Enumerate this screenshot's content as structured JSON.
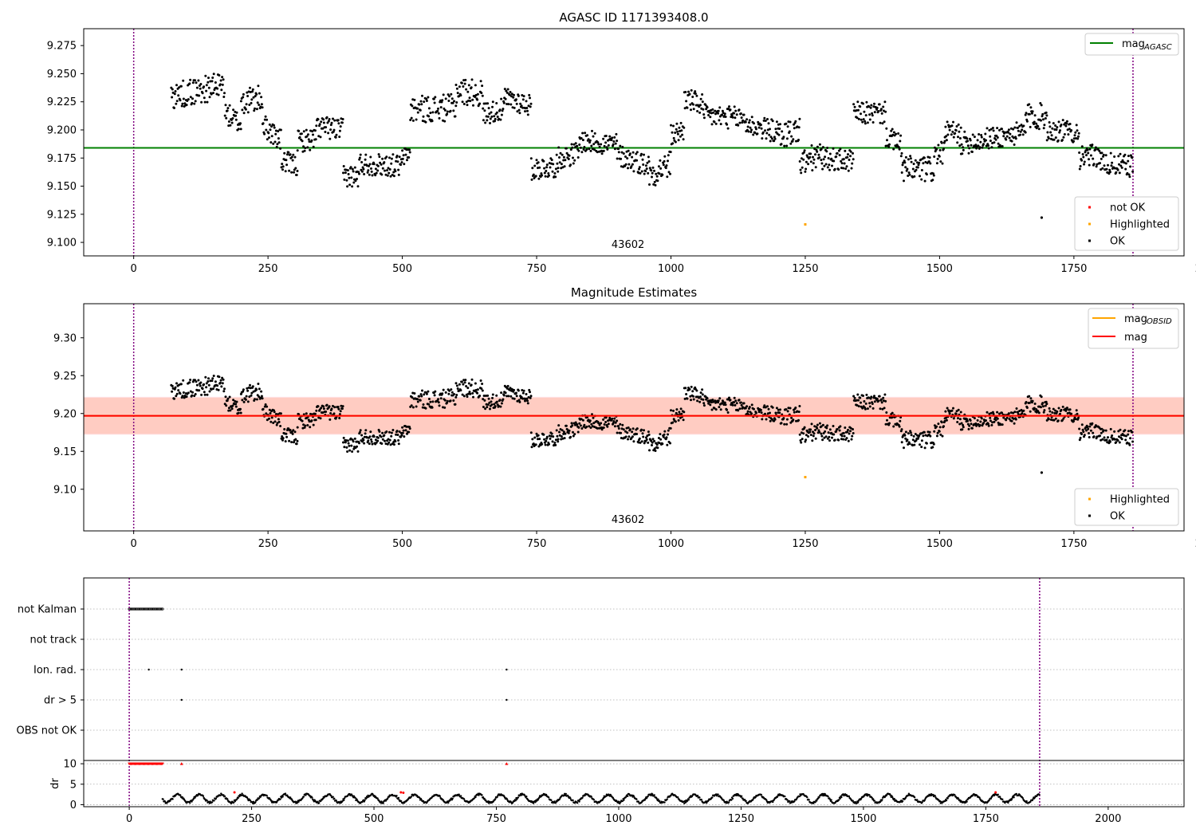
{
  "figure_title": "AGASC ID 1171393408.0",
  "colors": {
    "agasc_line": "#008000",
    "obsid_line": "#ffa500",
    "mag_line": "#ff0000",
    "band_outer": "#ffc0cb",
    "band_inner": "#ffa07a",
    "ok_points": "#000000",
    "highlighted_points": "#ffa500",
    "not_ok_points": "#ff0000",
    "vline": "#800080"
  },
  "chart_data": [
    {
      "type": "scatter",
      "title": "",
      "annotation": "43602",
      "x_ticks": [
        "0",
        "250",
        "500",
        "750",
        "1000",
        "1250",
        "1500",
        "1750",
        "2000"
      ],
      "y_ticks": [
        "9.100",
        "9.125",
        "9.150",
        "9.175",
        "9.200",
        "9.225",
        "9.250",
        "9.275"
      ],
      "xlim": [
        -93,
        1955
      ],
      "ylim": [
        9.088,
        9.29
      ],
      "vlines_x": [
        0,
        1860
      ],
      "hline": {
        "y": 9.184,
        "x": [
          -93,
          1955
        ]
      },
      "highlighted_points": [
        {
          "x": 1250,
          "y": 9.116
        }
      ],
      "legend_top": {
        "entries": [
          {
            "label": "mag",
            "sub": "AGASC"
          }
        ]
      },
      "legend_bottom": {
        "entries": [
          "not OK",
          "Highlighted",
          "OK"
        ]
      },
      "ok_series_segments": [
        {
          "x0": 70,
          "x1": 170,
          "c0": 9.23,
          "c1": 9.24,
          "amp": 0.012
        },
        {
          "x0": 170,
          "x1": 200,
          "c0": 9.215,
          "c1": 9.205,
          "amp": 0.01
        },
        {
          "x0": 200,
          "x1": 240,
          "c0": 9.225,
          "c1": 9.228,
          "amp": 0.012
        },
        {
          "x0": 240,
          "x1": 275,
          "c0": 9.205,
          "c1": 9.19,
          "amp": 0.01
        },
        {
          "x0": 275,
          "x1": 305,
          "c0": 9.172,
          "c1": 9.168,
          "amp": 0.01
        },
        {
          "x0": 305,
          "x1": 340,
          "c0": 9.19,
          "c1": 9.192,
          "amp": 0.01
        },
        {
          "x0": 340,
          "x1": 390,
          "c0": 9.203,
          "c1": 9.2,
          "amp": 0.01
        },
        {
          "x0": 390,
          "x1": 420,
          "c0": 9.16,
          "c1": 9.158,
          "amp": 0.01
        },
        {
          "x0": 420,
          "x1": 500,
          "c0": 9.17,
          "c1": 9.168,
          "amp": 0.01
        },
        {
          "x0": 500,
          "x1": 515,
          "c0": 9.175,
          "c1": 9.18,
          "amp": 0.008
        },
        {
          "x0": 515,
          "x1": 600,
          "c0": 9.218,
          "c1": 9.22,
          "amp": 0.012
        },
        {
          "x0": 600,
          "x1": 650,
          "c0": 9.235,
          "c1": 9.232,
          "amp": 0.012
        },
        {
          "x0": 650,
          "x1": 690,
          "c0": 9.215,
          "c1": 9.218,
          "amp": 0.01
        },
        {
          "x0": 690,
          "x1": 740,
          "c0": 9.228,
          "c1": 9.222,
          "amp": 0.01
        },
        {
          "x0": 740,
          "x1": 790,
          "c0": 9.165,
          "c1": 9.168,
          "amp": 0.01
        },
        {
          "x0": 790,
          "x1": 830,
          "c0": 9.175,
          "c1": 9.18,
          "amp": 0.01
        },
        {
          "x0": 830,
          "x1": 900,
          "c0": 9.19,
          "c1": 9.187,
          "amp": 0.01
        },
        {
          "x0": 900,
          "x1": 960,
          "c0": 9.178,
          "c1": 9.168,
          "amp": 0.01
        },
        {
          "x0": 960,
          "x1": 1000,
          "c0": 9.16,
          "c1": 9.17,
          "amp": 0.012
        },
        {
          "x0": 1000,
          "x1": 1025,
          "c0": 9.195,
          "c1": 9.2,
          "amp": 0.01
        },
        {
          "x0": 1025,
          "x1": 1060,
          "c0": 9.228,
          "c1": 9.222,
          "amp": 0.01
        },
        {
          "x0": 1060,
          "x1": 1140,
          "c0": 9.213,
          "c1": 9.21,
          "amp": 0.01
        },
        {
          "x0": 1140,
          "x1": 1200,
          "c0": 9.205,
          "c1": 9.198,
          "amp": 0.01
        },
        {
          "x0": 1200,
          "x1": 1240,
          "c0": 9.195,
          "c1": 9.2,
          "amp": 0.012
        },
        {
          "x0": 1240,
          "x1": 1280,
          "c0": 9.17,
          "c1": 9.178,
          "amp": 0.012
        },
        {
          "x0": 1280,
          "x1": 1340,
          "c0": 9.175,
          "c1": 9.172,
          "amp": 0.01
        },
        {
          "x0": 1340,
          "x1": 1400,
          "c0": 9.215,
          "c1": 9.215,
          "amp": 0.01
        },
        {
          "x0": 1400,
          "x1": 1430,
          "c0": 9.195,
          "c1": 9.185,
          "amp": 0.01
        },
        {
          "x0": 1430,
          "x1": 1490,
          "c0": 9.165,
          "c1": 9.165,
          "amp": 0.012
        },
        {
          "x0": 1490,
          "x1": 1510,
          "c0": 9.178,
          "c1": 9.18,
          "amp": 0.01
        },
        {
          "x0": 1510,
          "x1": 1540,
          "c0": 9.2,
          "c1": 9.195,
          "amp": 0.01
        },
        {
          "x0": 1540,
          "x1": 1660,
          "c0": 9.188,
          "c1": 9.198,
          "amp": 0.01
        },
        {
          "x0": 1660,
          "x1": 1700,
          "c0": 9.212,
          "c1": 9.212,
          "amp": 0.012
        },
        {
          "x0": 1700,
          "x1": 1760,
          "c0": 9.2,
          "c1": 9.198,
          "amp": 0.01
        },
        {
          "x0": 1760,
          "x1": 1800,
          "c0": 9.175,
          "c1": 9.178,
          "amp": 0.01
        },
        {
          "x0": 1800,
          "x1": 1860,
          "c0": 9.17,
          "c1": 9.168,
          "amp": 0.01
        }
      ],
      "ok_outliers": [
        {
          "x": 1690,
          "y": 9.122
        }
      ]
    },
    {
      "type": "scatter",
      "title": "Magnitude Estimates",
      "annotation": "43602",
      "x_ticks": [
        "0",
        "250",
        "500",
        "750",
        "1000",
        "1250",
        "1500",
        "1750",
        "2000"
      ],
      "y_ticks": [
        "9.10",
        "9.15",
        "9.20",
        "9.25",
        "9.30"
      ],
      "xlim": [
        -93,
        1955
      ],
      "ylim": [
        9.045,
        9.345
      ],
      "vlines_x": [
        0,
        1860
      ],
      "mag_line": {
        "y": 9.197,
        "x": [
          -93,
          1955
        ]
      },
      "obsid_line": {
        "y": 9.197,
        "x": [
          -93,
          1955
        ]
      },
      "band_outer": {
        "y0": 9.172,
        "y1": 9.222
      },
      "band_inner": {
        "y0": 9.173,
        "y1": 9.221
      },
      "highlighted_points": [
        {
          "x": 1250,
          "y": 9.116
        }
      ],
      "legend_top": {
        "entries": [
          {
            "label": "mag",
            "sub": "OBSID"
          },
          {
            "label": "mag",
            "sub": ""
          }
        ]
      },
      "legend_bottom": {
        "entries": [
          "Highlighted",
          "OK"
        ]
      },
      "ok_outliers": [
        {
          "x": 1690,
          "y": 9.122
        }
      ]
    },
    {
      "type": "scatter",
      "title": "",
      "x_ticks": [
        "0",
        "250",
        "500",
        "750",
        "1000",
        "1250",
        "1500",
        "1750",
        "2000"
      ],
      "xlim": [
        -93,
        2155
      ],
      "vlines_x": [
        0,
        1860
      ],
      "flag_labels": [
        "not Kalman",
        "not track",
        "Ion. rad.",
        "dr > 5",
        "OBS not OK"
      ],
      "flags": {
        "not Kalman": {
          "x_from": 0,
          "x_to": 68,
          "step": 2
        },
        "not track": [],
        "Ion. rad.": [
          40,
          107,
          771
        ],
        "dr > 5": [
          107,
          771
        ],
        "OBS not OK": []
      },
      "dr_panel": {
        "ylabel": "dr",
        "y_ticks": [
          "0",
          "5",
          "10"
        ],
        "ylim": [
          -0.5,
          10.8
        ],
        "clipped_at_10": {
          "x_from": 0,
          "x_to": 68,
          "step": 2,
          "extra": [
            107,
            771
          ]
        },
        "points_range": {
          "x0": 68,
          "x1": 1860,
          "mean": 1.5,
          "amp": 1.2
        },
        "red_points": [
          {
            "x": 215,
            "y": 3.0
          },
          {
            "x": 555,
            "y": 3.0
          },
          {
            "x": 560,
            "y": 2.9
          },
          {
            "x": 1770,
            "y": 3.0
          }
        ]
      }
    }
  ]
}
